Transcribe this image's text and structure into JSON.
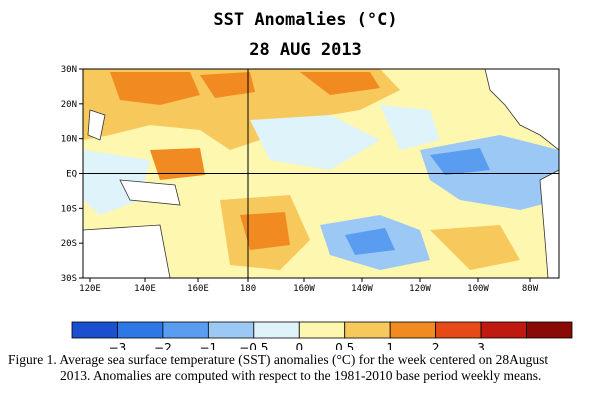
{
  "title": "SST Anomalies (°C)",
  "date": "28 AUG 2013",
  "map": {
    "lat_labels": [
      "30N",
      "20N",
      "10N",
      "EQ",
      "10S",
      "20S",
      "30S"
    ],
    "lon_labels": [
      "120E",
      "140E",
      "160E",
      "180",
      "160W",
      "140W",
      "120W",
      "100W",
      "80W"
    ],
    "lat_range": [
      -30,
      30
    ],
    "lon_range": [
      "120E",
      "70W"
    ],
    "reference_lines": [
      "EQ",
      "180"
    ]
  },
  "legend": {
    "colors": [
      "#1a4fcf",
      "#2e78e6",
      "#5a9cf0",
      "#9cc8f5",
      "#dff3fb",
      "#fdf7b0",
      "#f7c85c",
      "#f28a22",
      "#e64a17",
      "#c01a10",
      "#8a0a08"
    ],
    "tick_labels": [
      "−3",
      "−2",
      "−1",
      "−0.5",
      "0",
      "0.5",
      "1",
      "2",
      "3"
    ]
  },
  "caption": {
    "line1": "Figure 1. Average sea surface temperature (SST) anomalies (°C) for the week centered on 28August",
    "line2": "2013.   Anomalies are computed with respect to the 1981-2010 base period weekly means."
  }
}
